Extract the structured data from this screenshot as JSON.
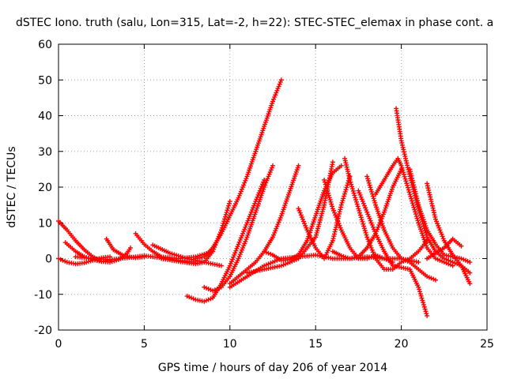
{
  "chart_data": {
    "type": "scatter",
    "title": "dSTEC Iono. truth (salu, Lon=315, Lat=-2, h=22): STEC-STEC_elemax in phase cont. a",
    "xlabel": "GPS time / hours of day 206 of year 2014",
    "ylabel": "dSTEC  / TECUs",
    "xlim": [
      0,
      25
    ],
    "ylim": [
      -20,
      60
    ],
    "xticks": [
      0,
      5,
      10,
      15,
      20,
      25
    ],
    "yticks": [
      -20,
      -10,
      0,
      10,
      20,
      30,
      40,
      50,
      60
    ],
    "grid": true,
    "marker": "plus",
    "color": "#ff0000",
    "series": [
      {
        "x": [
          0.0,
          0.5,
          1.0,
          1.5,
          2.0,
          2.5,
          3.0,
          3.5,
          4.0,
          4.2
        ],
        "y": [
          10.5,
          8.0,
          5.0,
          2.5,
          0.5,
          -0.8,
          -1.0,
          -0.3,
          1.5,
          3.0
        ]
      },
      {
        "x": [
          0.0,
          0.5,
          1.0,
          1.5,
          2.0,
          2.5,
          3.0
        ],
        "y": [
          0.0,
          -1.0,
          -1.5,
          -1.2,
          -0.5,
          0.2,
          0.5
        ]
      },
      {
        "x": [
          0.4,
          1.0,
          1.5,
          2.0,
          2.5,
          3.0
        ],
        "y": [
          4.5,
          2.0,
          0.5,
          -0.3,
          -0.8,
          -0.5
        ]
      },
      {
        "x": [
          1.0,
          2.0,
          3.0,
          4.0,
          5.0,
          6.0,
          7.0,
          8.0
        ],
        "y": [
          0.5,
          0.0,
          -0.3,
          0.2,
          0.8,
          0.2,
          -0.5,
          -1.0
        ]
      },
      {
        "x": [
          2.8,
          3.2,
          3.8,
          4.5,
          5.0
        ],
        "y": [
          5.5,
          2.5,
          0.8,
          0.2,
          0.5
        ]
      },
      {
        "x": [
          4.5,
          5.0,
          5.5,
          6.0,
          7.0,
          8.0,
          9.0
        ],
        "y": [
          7.0,
          4.0,
          2.0,
          0.5,
          0.0,
          0.5,
          2.0
        ]
      },
      {
        "x": [
          5.5,
          6.5,
          7.5,
          8.5,
          9.5
        ],
        "y": [
          3.8,
          1.5,
          0.0,
          -1.0,
          -2.0
        ]
      },
      {
        "x": [
          6.0,
          7.0,
          8.0,
          8.5,
          9.0,
          9.5,
          10.0
        ],
        "y": [
          0.0,
          -0.8,
          -1.5,
          -1.0,
          2.0,
          8.0,
          16.0
        ]
      },
      {
        "x": [
          8.0,
          8.5,
          9.0,
          9.5,
          10.0,
          10.5,
          11.0,
          11.5,
          12.0,
          12.5,
          13.0
        ],
        "y": [
          0.0,
          0.5,
          3.0,
          7.0,
          12.0,
          17.0,
          23.0,
          30.0,
          37.0,
          44.0,
          50.0
        ]
      },
      {
        "x": [
          7.5,
          8.0,
          8.5,
          9.0,
          9.5,
          10.0,
          10.5,
          11.0,
          11.5,
          12.0
        ],
        "y": [
          -10.5,
          -11.5,
          -12.0,
          -11.0,
          -7.0,
          -2.0,
          4.0,
          10.0,
          16.0,
          22.0
        ]
      },
      {
        "x": [
          8.5,
          9.0,
          9.5,
          10.0,
          10.5,
          11.0,
          11.5,
          12.0,
          12.5
        ],
        "y": [
          -8.0,
          -9.0,
          -8.0,
          -5.0,
          0.0,
          6.0,
          13.0,
          20.0,
          26.0
        ]
      },
      {
        "x": [
          10.0,
          10.5,
          11.0,
          11.5,
          12.0,
          12.5,
          13.0,
          13.5,
          14.0
        ],
        "y": [
          -7.0,
          -5.0,
          -3.0,
          -1.0,
          2.0,
          6.0,
          12.0,
          19.0,
          26.0
        ]
      },
      {
        "x": [
          11.0,
          12.0,
          13.0,
          14.0,
          15.0,
          15.5,
          16.0
        ],
        "y": [
          -4.0,
          -3.0,
          -2.0,
          0.0,
          6.0,
          15.0,
          27.0
        ]
      },
      {
        "x": [
          12.0,
          12.5,
          13.0,
          13.5,
          14.0,
          14.5,
          15.0,
          15.5,
          16.0,
          16.5
        ],
        "y": [
          2.0,
          1.0,
          -0.5,
          -0.3,
          1.0,
          5.0,
          12.0,
          19.0,
          24.0,
          26.0
        ]
      },
      {
        "x": [
          14.0,
          14.5,
          15.0,
          15.5,
          16.0,
          16.5,
          17.0
        ],
        "y": [
          14.0,
          8.0,
          3.0,
          0.0,
          5.0,
          15.0,
          23.0
        ]
      },
      {
        "x": [
          15.5,
          16.0,
          16.5,
          17.0,
          17.5,
          18.0,
          18.5,
          19.0,
          19.5
        ],
        "y": [
          22.0,
          14.0,
          8.0,
          3.0,
          0.0,
          0.0,
          1.0,
          0.0,
          -1.0
        ]
      },
      {
        "x": [
          16.0,
          16.5,
          17.0,
          17.5,
          18.0,
          18.5,
          19.0,
          19.5,
          20.0
        ],
        "y": [
          2.0,
          0.8,
          0.0,
          0.5,
          3.0,
          7.0,
          13.0,
          20.0,
          25.0
        ]
      },
      {
        "x": [
          16.7,
          17.0,
          17.5,
          18.0,
          18.5,
          19.0,
          19.5,
          20.0,
          20.5,
          21.0,
          21.5
        ],
        "y": [
          28.0,
          22.0,
          14.0,
          6.0,
          0.0,
          -3.0,
          -3.0,
          -1.0,
          0.0,
          2.0,
          5.0
        ]
      },
      {
        "x": [
          17.5,
          18.0,
          18.5,
          19.0,
          19.5,
          20.0,
          20.5,
          21.0,
          21.5
        ],
        "y": [
          19.0,
          13.0,
          7.0,
          2.0,
          -2.0,
          -2.5,
          -3.0,
          -8.0,
          -16.0
        ]
      },
      {
        "x": [
          18.0,
          18.5,
          19.0,
          19.5,
          20.0,
          20.5,
          21.0,
          21.5,
          22.0
        ],
        "y": [
          23.0,
          15.0,
          8.0,
          3.0,
          0.0,
          -1.0,
          -3.0,
          -5.0,
          -6.0
        ]
      },
      {
        "x": [
          18.5,
          19.0,
          19.5,
          19.8,
          20.0,
          20.5,
          21.0,
          21.5,
          22.0,
          22.5,
          23.0
        ],
        "y": [
          18.0,
          22.0,
          26.0,
          28.0,
          26.0,
          18.0,
          10.0,
          3.0,
          0.0,
          -1.0,
          -2.0
        ]
      },
      {
        "x": [
          19.7,
          20.0,
          20.5,
          21.0,
          21.5,
          22.0,
          22.5,
          23.0,
          23.5,
          24.0
        ],
        "y": [
          42.0,
          33.0,
          23.0,
          14.0,
          6.0,
          2.0,
          0.0,
          -1.0,
          -2.0,
          -4.0
        ]
      },
      {
        "x": [
          20.5,
          21.0,
          21.5,
          22.0,
          22.5,
          23.0,
          23.5,
          24.0
        ],
        "y": [
          25.0,
          15.0,
          8.0,
          4.0,
          1.0,
          0.5,
          0.0,
          -1.0
        ]
      },
      {
        "x": [
          21.5,
          22.0,
          22.5,
          23.0,
          23.5,
          24.0
        ],
        "y": [
          21.0,
          11.0,
          5.0,
          1.0,
          -2.0,
          -7.0
        ]
      },
      {
        "x": [
          21.5,
          22.0,
          22.5,
          23.0,
          23.5
        ],
        "y": [
          0.0,
          1.5,
          3.0,
          5.5,
          3.5
        ]
      },
      {
        "x": [
          10.0,
          11.0,
          12.0,
          13.0,
          14.0,
          15.0,
          16.0,
          17.0,
          18.0,
          19.0,
          20.0,
          21.0
        ],
        "y": [
          -8.0,
          -5.0,
          -2.0,
          0.0,
          0.5,
          1.0,
          0.0,
          0.0,
          0.5,
          0.0,
          0.0,
          -1.0
        ]
      }
    ]
  }
}
